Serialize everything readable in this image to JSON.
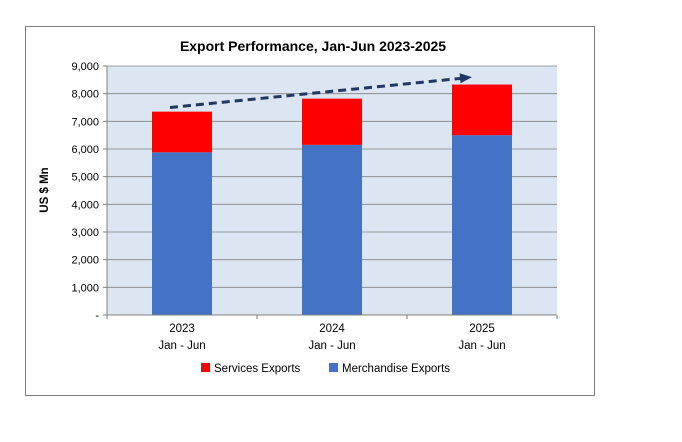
{
  "chart_data": {
    "type": "bar",
    "stacked": true,
    "title": "Export Performance, Jan-Jun 2023-2025",
    "xlabel": "",
    "ylabel": "US $ Mn",
    "ylim": [
      0,
      9000
    ],
    "yticks": [
      "-",
      "1,000",
      "2,000",
      "3,000",
      "4,000",
      "5,000",
      "6,000",
      "7,000",
      "8,000",
      "9,000"
    ],
    "categories": [
      {
        "year": "2023",
        "period": "Jan - Jun"
      },
      {
        "year": "2024",
        "period": "Jan - Jun"
      },
      {
        "year": "2025",
        "period": "Jan - Jun"
      }
    ],
    "series": [
      {
        "name": "Merchandise Exports",
        "color": "#4472C4",
        "values": [
          5880,
          6150,
          6500
        ]
      },
      {
        "name": "Services Exports",
        "color": "#FF0000",
        "values": [
          1470,
          1670,
          1830
        ]
      }
    ],
    "legend_order": [
      "Services Exports",
      "Merchandise Exports"
    ],
    "legend_position": "bottom",
    "grid": true,
    "plot_background": "#DCE6F2",
    "trend_arrow": {
      "color": "#1F3864",
      "style": "dashed",
      "from": [
        0,
        7500
      ],
      "to": [
        2,
        8600
      ]
    }
  }
}
